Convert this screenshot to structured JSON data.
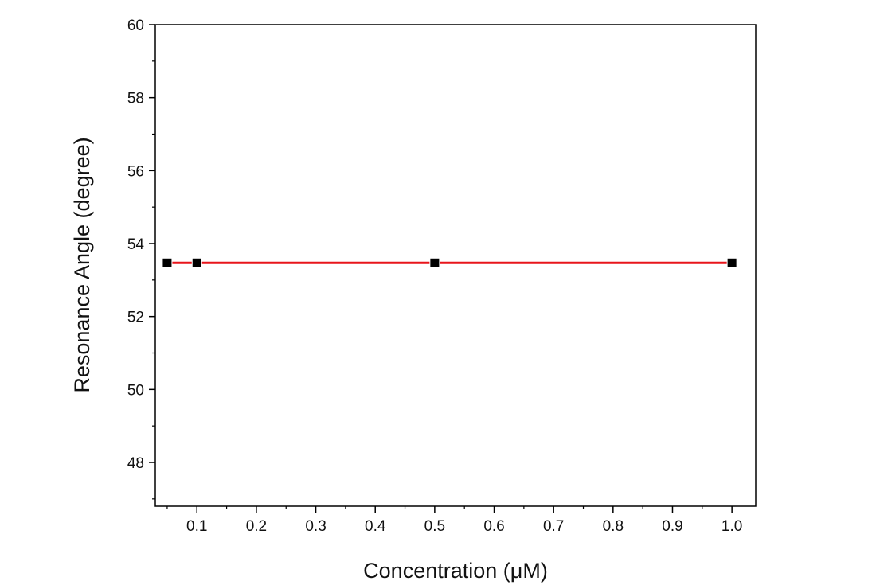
{
  "chart_data": {
    "type": "line",
    "title": "",
    "xlabel": "Concentration (μM)",
    "ylabel": "Resonance Angle (degree)",
    "xlim": [
      0.03,
      1.04
    ],
    "ylim": [
      46.8,
      60
    ],
    "xticks": [
      0.1,
      0.2,
      0.3,
      0.4,
      0.5,
      0.6,
      0.7,
      0.8,
      0.9,
      1.0
    ],
    "xtick_labels": [
      "0.1",
      "0.2",
      "0.3",
      "0.4",
      "0.5",
      "0.6",
      "0.7",
      "0.8",
      "0.9",
      "1.0"
    ],
    "yticks": [
      48,
      50,
      52,
      54,
      56,
      58,
      60
    ],
    "ytick_labels": [
      "48",
      "50",
      "52",
      "54",
      "56",
      "58",
      "60"
    ],
    "grid": false,
    "legend": "none",
    "series": [
      {
        "x": [
          0.05,
          0.1,
          0.5,
          1.0
        ],
        "y": [
          53.47,
          53.47,
          53.47,
          53.47
        ],
        "line_color": "#e8151b",
        "marker": "square",
        "marker_color": "#000000"
      }
    ]
  }
}
